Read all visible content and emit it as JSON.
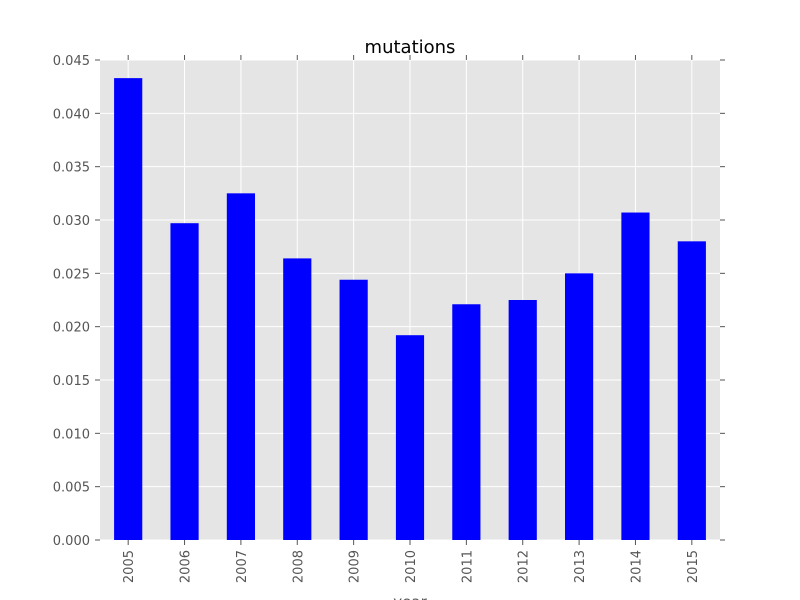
{
  "chart_data": {
    "type": "bar",
    "title": "mutations",
    "xlabel": "year",
    "ylabel": "",
    "categories": [
      "2005",
      "2006",
      "2007",
      "2008",
      "2009",
      "2010",
      "2011",
      "2012",
      "2013",
      "2014",
      "2015"
    ],
    "values": [
      0.0433,
      0.0297,
      0.0325,
      0.0264,
      0.0244,
      0.0192,
      0.0221,
      0.0225,
      0.025,
      0.0307,
      0.028
    ],
    "ylim": [
      0,
      0.045
    ],
    "yticks": [
      "0.000",
      "0.005",
      "0.010",
      "0.015",
      "0.020",
      "0.025",
      "0.030",
      "0.035",
      "0.040",
      "0.045"
    ],
    "grid": true,
    "legend": "none",
    "colors": {
      "bar": "#0000ff",
      "plot_background": "#e5e5e5",
      "grid": "#ffffff",
      "tick_text": "#555555",
      "title_text": "#000000"
    }
  }
}
